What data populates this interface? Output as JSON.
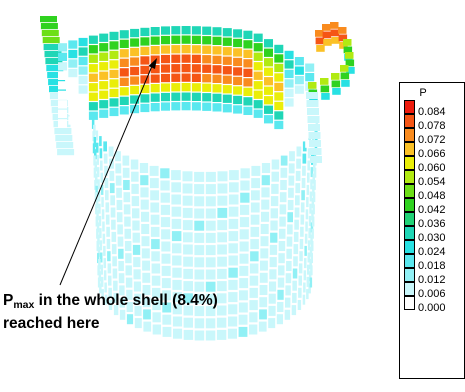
{
  "legend": {
    "title": "P",
    "entries": [
      {
        "label": "0.084",
        "color": "#ee1c0e"
      },
      {
        "label": "0.078",
        "color": "#f55515"
      },
      {
        "label": "0.072",
        "color": "#f98b1e"
      },
      {
        "label": "0.066",
        "color": "#fbc126"
      },
      {
        "label": "0.060",
        "color": "#eaee08"
      },
      {
        "label": "0.054",
        "color": "#b1ea12"
      },
      {
        "label": "0.048",
        "color": "#6ddf17"
      },
      {
        "label": "0.042",
        "color": "#2fd21f"
      },
      {
        "label": "0.036",
        "color": "#20d276"
      },
      {
        "label": "0.030",
        "color": "#1fd6b6"
      },
      {
        "label": "0.024",
        "color": "#28e1e3"
      },
      {
        "label": "0.018",
        "color": "#5ae8ef"
      },
      {
        "label": "0.012",
        "color": "#91f0f5"
      },
      {
        "label": "0.006",
        "color": "#c9f7fb"
      },
      {
        "label": "0.000",
        "color": "#ffffff"
      }
    ]
  },
  "annotation": {
    "symbol": "P",
    "subscript": "max",
    "line1_rest": " in the whole shell (8.4%)",
    "line2": "reached here"
  }
}
